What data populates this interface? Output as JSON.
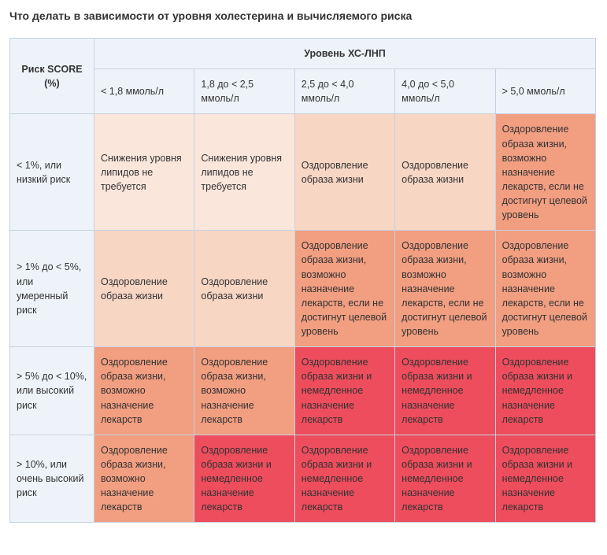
{
  "title": "Что делать в зависимости от уровня холестерина и вычисляемого риска",
  "table": {
    "risk_header": "Риск SCORE (%)",
    "level_header": "Уровень ХС-ЛНП",
    "columns": [
      "< 1,8 ммоль/л",
      "1,8 до < 2,5 ммоль/л",
      "2,5 до < 4,0 ммоль/л",
      "4,0 до < 5,0 ммоль/л",
      "> 5,0 ммоль/л"
    ],
    "row_labels": [
      "< 1%, или низкий риск",
      "> 1% до < 5%, или умеренный риск",
      "> 5% до < 10%, или высокий риск",
      "> 10%, или очень высокий риск"
    ],
    "cells": [
      [
        "Снижения уровня липидов не требуется",
        "Снижения уровня липидов не требуется",
        "Оздоровление образа жизни",
        "Оздоровление образа жизни",
        "Оздоровление образа жизни, возможно назначение лекарств, если не достигнут целевой уровень"
      ],
      [
        "Оздоровление образа жизни",
        "Оздоровление образа жизни",
        "Оздоровление образа жизни, возможно назначение лекарств, если не достигнут целевой уровень",
        "Оздоровление образа жизни, возможно назначение лекарств, если не достигнут целевой уровень",
        "Оздоровление образа жизни, возможно назначение лекарств, если не достигнут целевой уровень"
      ],
      [
        "Оздоровление образа жизни, возможно назначение лекарств",
        "Оздоровление образа жизни, возможно назначение лекарств",
        "Оздоровление образа жизни и немедленное назначение лекарств",
        "Оздоровление образа жизни и немедленное назначение лекарств",
        "Оздоровление образа жизни и немедленное назначение лекарств"
      ],
      [
        "Оздоровление образа жизни, возможно назначение лекарств",
        "Оздоровление образа жизни и немедленное назначение лекарств",
        "Оздоровление образа жизни и немедленное назначение лекарств",
        "Оздоровление образа жизни и немедленное назначение лекарств",
        "Оздоровление образа жизни и немедленное назначение лекарств"
      ]
    ],
    "cell_colors": [
      [
        "#fbe6db",
        "#fbe6db",
        "#f8d6c4",
        "#f8d6c4",
        "#f19e81"
      ],
      [
        "#f8d6c4",
        "#f8d6c4",
        "#f19e81",
        "#f19e81",
        "#f19e81"
      ],
      [
        "#f19e81",
        "#f19e81",
        "#ed4d5c",
        "#ed4d5c",
        "#ed4d5c"
      ],
      [
        "#f19e81",
        "#ed4d5c",
        "#ed4d5c",
        "#ed4d5c",
        "#ed4d5c"
      ]
    ],
    "header_bg": "#eef3f9",
    "border_color": "#c6d2e1",
    "text_color": "#333333"
  }
}
